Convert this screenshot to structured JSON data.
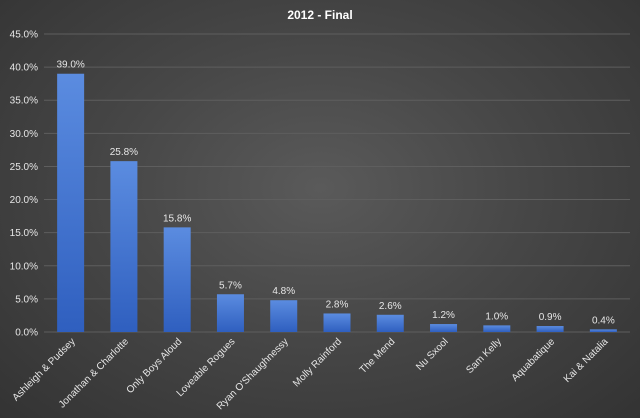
{
  "chart_data": {
    "type": "bar",
    "title": "2012 - Final",
    "xlabel": "",
    "ylabel": "",
    "categories": [
      "Ashleigh & Pudsey",
      "Jonathan & Charlotte",
      "Only Boys Aloud",
      "Loveable Rogues",
      "Ryan O'Shaughnessy",
      "Molly Rainford",
      "The Mend",
      "Nu Sxool",
      "Sam Kelly",
      "Aquabatique",
      "Kai & Natalia"
    ],
    "values": [
      39.0,
      25.8,
      15.8,
      5.7,
      4.8,
      2.8,
      2.6,
      1.2,
      1.0,
      0.9,
      0.4
    ],
    "data_labels": [
      "39.0%",
      "25.8%",
      "15.8%",
      "5.7%",
      "4.8%",
      "2.8%",
      "2.6%",
      "1.2%",
      "1.0%",
      "0.9%",
      "0.4%"
    ],
    "ylim": [
      0,
      45
    ],
    "yticks": [
      0,
      5,
      10,
      15,
      20,
      25,
      30,
      35,
      40,
      45
    ],
    "ytick_labels": [
      "0.0%",
      "5.0%",
      "10.0%",
      "15.0%",
      "20.0%",
      "25.0%",
      "30.0%",
      "35.0%",
      "40.0%",
      "45.0%"
    ],
    "grid": true,
    "legend": "none",
    "colors": {
      "bar_top": "#5b8ce0",
      "bar_bottom": "#2f5fbf",
      "grid": "#5e5e5e",
      "text": "#e6e6e6"
    }
  }
}
